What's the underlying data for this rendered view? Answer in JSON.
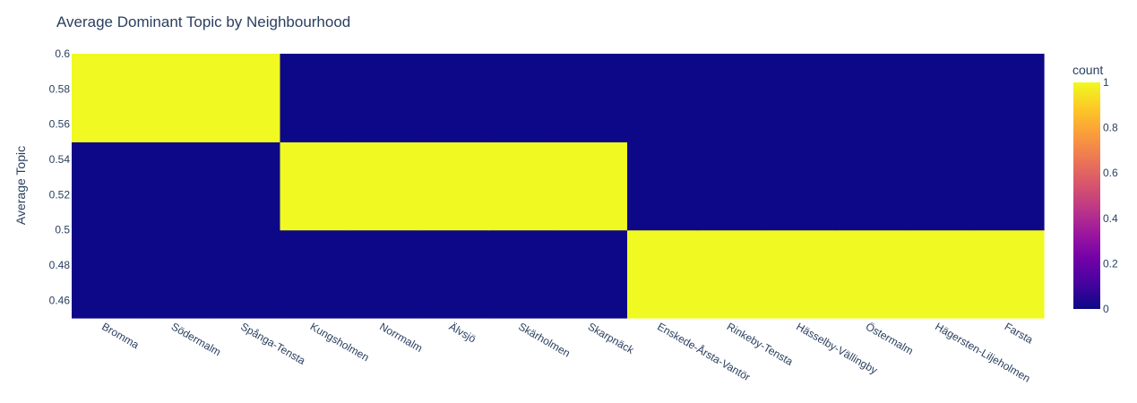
{
  "chart_data": {
    "type": "heatmap",
    "title": "Average Dominant Topic by Neighbourhood",
    "xlabel": "",
    "ylabel": "Average Topic",
    "x_categories": [
      "Bromma",
      "Södermalm",
      "Spånga-Tensta",
      "Kungsholmen",
      "Norrmalm",
      "Älvsjö",
      "Skärholmen",
      "Skarpnäck",
      "Enskede-Årsta-Vantör",
      "Rinkeby-Tensta",
      "Hässelby-Vällingby",
      "Östermalm",
      "Hägersten-Liljeholmen",
      "Farsta"
    ],
    "y_bins": [
      [
        0.45,
        0.5
      ],
      [
        0.5,
        0.55
      ],
      [
        0.55,
        0.6
      ]
    ],
    "ylim": [
      0.45,
      0.6
    ],
    "y_ticks": [
      "0.46",
      "0.48",
      "0.5",
      "0.52",
      "0.54",
      "0.56",
      "0.58",
      "0.6"
    ],
    "y_tick_values": [
      0.46,
      0.48,
      0.5,
      0.52,
      0.54,
      0.56,
      0.58,
      0.6
    ],
    "z": [
      [
        0,
        0,
        0,
        0,
        0,
        0,
        0,
        0,
        1,
        1,
        1,
        1,
        1,
        1
      ],
      [
        0,
        0,
        0,
        1,
        1,
        1,
        1,
        1,
        0,
        0,
        0,
        0,
        0,
        0
      ],
      [
        1,
        1,
        1,
        0,
        0,
        0,
        0,
        0,
        0,
        0,
        0,
        0,
        0,
        0
      ]
    ],
    "colorbar": {
      "title": "count",
      "range": [
        0,
        1
      ],
      "ticks": [
        "0",
        "0.2",
        "0.4",
        "0.6",
        "0.8",
        "1"
      ],
      "tick_values": [
        0,
        0.2,
        0.4,
        0.6,
        0.8,
        1
      ]
    },
    "colorscale": [
      "#0d0887",
      "#46039f",
      "#7201a8",
      "#9c179e",
      "#bd3786",
      "#d8576b",
      "#ed7953",
      "#fb9f3a",
      "#fdca26",
      "#f0f921"
    ],
    "grid": false
  }
}
